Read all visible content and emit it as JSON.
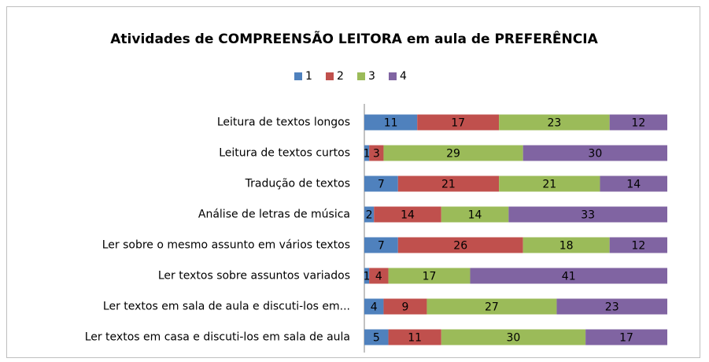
{
  "chart_data": {
    "type": "stacked-bar-horizontal",
    "title": "Atividades de COMPREENSÃO LEITORA em aula de PREFERÊNCIA",
    "categories": [
      "Leitura de textos longos",
      "Leitura de textos curtos",
      "Tradução de textos",
      "Análise de letras de música",
      "Ler sobre o mesmo assunto em vários textos",
      "Ler textos sobre assuntos variados",
      "Ler textos em sala de aula e discuti-los em...",
      "Ler textos em casa e discuti-los em sala de aula"
    ],
    "series": [
      {
        "name": "1",
        "color": "#4f81bd",
        "values": [
          11,
          1,
          7,
          2,
          7,
          1,
          4,
          5
        ]
      },
      {
        "name": "2",
        "color": "#c0504d",
        "values": [
          17,
          3,
          21,
          14,
          26,
          4,
          9,
          11
        ]
      },
      {
        "name": "3",
        "color": "#9bbb59",
        "values": [
          23,
          29,
          21,
          14,
          18,
          17,
          27,
          30
        ]
      },
      {
        "name": "4",
        "color": "#8064a2",
        "values": [
          12,
          30,
          14,
          33,
          12,
          41,
          23,
          17
        ]
      }
    ],
    "legend": "top"
  }
}
